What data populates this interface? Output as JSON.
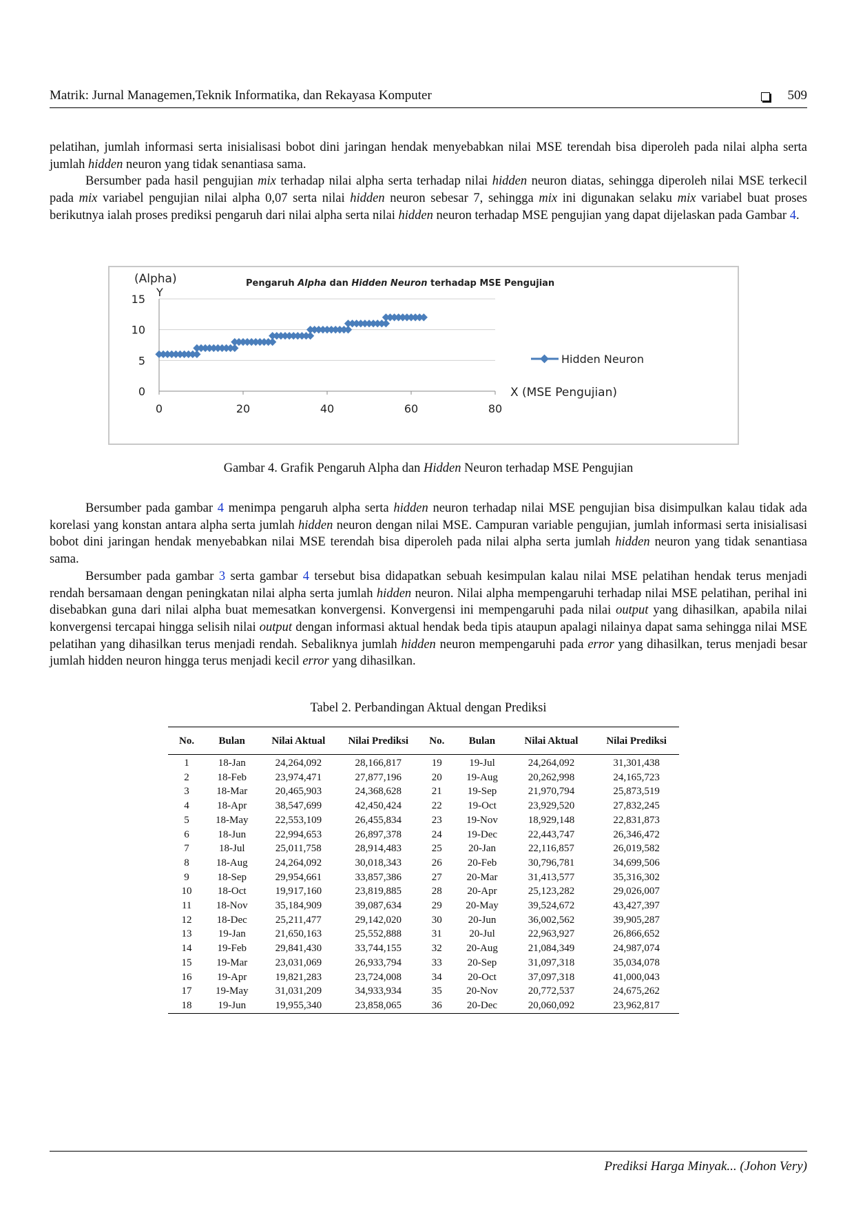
{
  "header": {
    "journal": "Matrik: Jurnal Managemen,Teknik Informatika, dan Rekayasa Komputer",
    "page_number": "509"
  },
  "para1": {
    "line_a": "pelatihan, jumlah informasi serta inisialisasi bobot dini jaringan hendak menyebabkan nilai MSE terendah bisa diperoleh pada nilai alpha serta jumlah ",
    "hidden": "hidden",
    "line_b": " neuron yang tidak senantiasa sama."
  },
  "para2": {
    "t1": "Bersumber pada hasil pengujian ",
    "mix1": "mix",
    "t2": " terhadap nilai alpha serta terhadap nilai ",
    "hidden1": "hidden",
    "t3": " neuron diatas, sehingga diperoleh nilai MSE terkecil pada ",
    "mix2": "mix",
    "t4": " variabel pengujian nilai alpha 0,07 serta nilai ",
    "hidden2": "hidden",
    "t5": " neuron sebesar 7, sehingga ",
    "mix3": "mix",
    "t6": " ini digunakan selaku ",
    "mix4": "mix",
    "t7": " variabel buat proses berikutnya ialah proses prediksi pengaruh dari nilai alpha serta nilai ",
    "hidden3": "hidden",
    "t8": " neuron terhadap MSE pengujian yang dapat dijelaskan pada Gambar ",
    "ref": "4",
    "t9": "."
  },
  "figure": {
    "caption_a": "Gambar 4. Grafik Pengaruh Alpha dan ",
    "caption_hidden": "Hidden",
    "caption_b": " Neuron terhadap MSE Pengujian"
  },
  "chart_data": {
    "type": "line",
    "title": "Pengaruh Alpha dan Hidden Neuron terhadap MSE Pengujian",
    "title_parts": [
      "Pengaruh ",
      "Alpha",
      " dan ",
      "Hidden Neuron",
      " terhadap MSE Pengujian"
    ],
    "ylabel_top": "(Alpha)",
    "ylabel_axis": "Y",
    "xlabel": "X (MSE Pengujian)",
    "xlim": [
      0,
      80
    ],
    "ylim": [
      0,
      15
    ],
    "x_ticks": [
      "0",
      "20",
      "40",
      "60",
      "80"
    ],
    "y_ticks": [
      "0",
      "5",
      "10",
      "15"
    ],
    "grid": true,
    "legend_position": "right",
    "color": "#4a7ebb",
    "series": [
      {
        "name": "Hidden Neuron",
        "points": [
          [
            0,
            6
          ],
          [
            1,
            6
          ],
          [
            2,
            6
          ],
          [
            3,
            6
          ],
          [
            4,
            6
          ],
          [
            5,
            6
          ],
          [
            6,
            6
          ],
          [
            7,
            6
          ],
          [
            8,
            6
          ],
          [
            9,
            6
          ],
          [
            9,
            7
          ],
          [
            10,
            7
          ],
          [
            11,
            7
          ],
          [
            12,
            7
          ],
          [
            13,
            7
          ],
          [
            14,
            7
          ],
          [
            15,
            7
          ],
          [
            16,
            7
          ],
          [
            17,
            7
          ],
          [
            18,
            7
          ],
          [
            18,
            8
          ],
          [
            19,
            8
          ],
          [
            20,
            8
          ],
          [
            21,
            8
          ],
          [
            22,
            8
          ],
          [
            23,
            8
          ],
          [
            24,
            8
          ],
          [
            25,
            8
          ],
          [
            26,
            8
          ],
          [
            27,
            8
          ],
          [
            27,
            9
          ],
          [
            28,
            9
          ],
          [
            29,
            9
          ],
          [
            30,
            9
          ],
          [
            31,
            9
          ],
          [
            32,
            9
          ],
          [
            33,
            9
          ],
          [
            34,
            9
          ],
          [
            35,
            9
          ],
          [
            36,
            9
          ],
          [
            36,
            10
          ],
          [
            37,
            10
          ],
          [
            38,
            10
          ],
          [
            39,
            10
          ],
          [
            40,
            10
          ],
          [
            41,
            10
          ],
          [
            42,
            10
          ],
          [
            43,
            10
          ],
          [
            44,
            10
          ],
          [
            45,
            10
          ],
          [
            45,
            11
          ],
          [
            46,
            11
          ],
          [
            47,
            11
          ],
          [
            48,
            11
          ],
          [
            49,
            11
          ],
          [
            50,
            11
          ],
          [
            51,
            11
          ],
          [
            52,
            11
          ],
          [
            53,
            11
          ],
          [
            54,
            11
          ],
          [
            54,
            12
          ],
          [
            55,
            12
          ],
          [
            56,
            12
          ],
          [
            57,
            12
          ],
          [
            58,
            12
          ],
          [
            59,
            12
          ],
          [
            60,
            12
          ],
          [
            61,
            12
          ],
          [
            62,
            12
          ],
          [
            63,
            12
          ]
        ]
      }
    ]
  },
  "para3": {
    "t1": "Bersumber pada gambar ",
    "ref": "4",
    "t2": " menimpa pengaruh alpha serta ",
    "hidden1": "hidden",
    "t3": " neuron terhadap nilai MSE pengujian bisa disimpulkan kalau tidak ada korelasi yang konstan antara alpha serta jumlah ",
    "hidden2": "hidden",
    "t4": " neuron dengan nilai MSE. Campuran variable pengujian, jumlah informasi serta inisialisasi bobot dini jaringan hendak menyebabkan nilai MSE terendah bisa diperoleh pada nilai alpha serta jumlah ",
    "hidden3": "hidden",
    "t5": " neuron yang tidak senantiasa sama."
  },
  "para4": {
    "t1": "Bersumber pada gambar ",
    "ref3": "3",
    "t2": " serta gambar ",
    "ref4": "4",
    "t3": " tersebut bisa didapatkan sebuah kesimpulan kalau nilai MSE pelatihan hendak terus menjadi rendah bersamaan dengan peningkatan nilai alpha serta jumlah ",
    "hidden1": "hidden",
    "t4": " neuron.  Nilai alpha mempengaruhi terhadap nilai MSE pelatihan, perihal ini disebabkan guna dari nilai alpha buat memesatkan konvergensi.  Konvergensi ini mempengaruhi pada nilai ",
    "output1": "output",
    "t5": " yang dihasilkan, apabila nilai konvergensi tercapai hingga selisih nilai ",
    "output2": "output",
    "t6": " dengan informasi aktual hendak beda tipis ataupun apalagi nilainya dapat sama sehingga nilai MSE pelatihan yang dihasilkan terus menjadi rendah. Sebaliknya jumlah ",
    "hidden2": "hidden",
    "t7": " neuron mempengaruhi pada ",
    "error1": "error",
    "t8": " yang dihasilkan, terus menjadi besar jumlah hidden neuron hingga terus menjadi kecil ",
    "error2": "error",
    "t9": " yang dihasilkan."
  },
  "table": {
    "caption": "Tabel 2. Perbandingan Aktual dengan Prediksi",
    "headers": [
      "No.",
      "Bulan",
      "Nilai Aktual",
      "Nilai Prediksi",
      "No.",
      "Bulan",
      "Nilai Aktual",
      "Nilai Prediksi"
    ],
    "rows": [
      [
        "1",
        "18-Jan",
        "24,264,092",
        "28,166,817",
        "19",
        "19-Jul",
        "24,264,092",
        "31,301,438"
      ],
      [
        "2",
        "18-Feb",
        "23,974,471",
        "27,877,196",
        "20",
        "19-Aug",
        "20,262,998",
        "24,165,723"
      ],
      [
        "3",
        "18-Mar",
        "20,465,903",
        "24,368,628",
        "21",
        "19-Sep",
        "21,970,794",
        "25,873,519"
      ],
      [
        "4",
        "18-Apr",
        "38,547,699",
        "42,450,424",
        "22",
        "19-Oct",
        "23,929,520",
        "27,832,245"
      ],
      [
        "5",
        "18-May",
        "22,553,109",
        "26,455,834",
        "23",
        "19-Nov",
        "18,929,148",
        "22,831,873"
      ],
      [
        "6",
        "18-Jun",
        "22,994,653",
        "26,897,378",
        "24",
        "19-Dec",
        "22,443,747",
        "26,346,472"
      ],
      [
        "7",
        "18-Jul",
        "25,011,758",
        "28,914,483",
        "25",
        "20-Jan",
        "22,116,857",
        "26,019,582"
      ],
      [
        "8",
        "18-Aug",
        "24,264,092",
        "30,018,343",
        "26",
        "20-Feb",
        "30,796,781",
        "34,699,506"
      ],
      [
        "9",
        "18-Sep",
        "29,954,661",
        "33,857,386",
        "27",
        "20-Mar",
        "31,413,577",
        "35,316,302"
      ],
      [
        "10",
        "18-Oct",
        "19,917,160",
        "23,819,885",
        "28",
        "20-Apr",
        "25,123,282",
        "29,026,007"
      ],
      [
        "11",
        "18-Nov",
        "35,184,909",
        "39,087,634",
        "29",
        "20-May",
        "39,524,672",
        "43,427,397"
      ],
      [
        "12",
        "18-Dec",
        "25,211,477",
        "29,142,020",
        "30",
        "20-Jun",
        "36,002,562",
        "39,905,287"
      ],
      [
        "13",
        "19-Jan",
        "21,650,163",
        "25,552,888",
        "31",
        "20-Jul",
        "22,963,927",
        "26,866,652"
      ],
      [
        "14",
        "19-Feb",
        "29,841,430",
        "33,744,155",
        "32",
        "20-Aug",
        "21,084,349",
        "24,987,074"
      ],
      [
        "15",
        "19-Mar",
        "23,031,069",
        "26,933,794",
        "33",
        "20-Sep",
        "31,097,318",
        "35,034,078"
      ],
      [
        "16",
        "19-Apr",
        "19,821,283",
        "23,724,008",
        "34",
        "20-Oct",
        "37,097,318",
        "41,000,043"
      ],
      [
        "17",
        "19-May",
        "31,031,209",
        "34,933,934",
        "35",
        "20-Nov",
        "20,772,537",
        "24,675,262"
      ],
      [
        "18",
        "19-Jun",
        "19,955,340",
        "23,858,065",
        "36",
        "20-Dec",
        "20,060,092",
        "23,962,817"
      ]
    ]
  },
  "footer": {
    "text": "Prediksi Harga Minyak... (Johon Very)"
  }
}
